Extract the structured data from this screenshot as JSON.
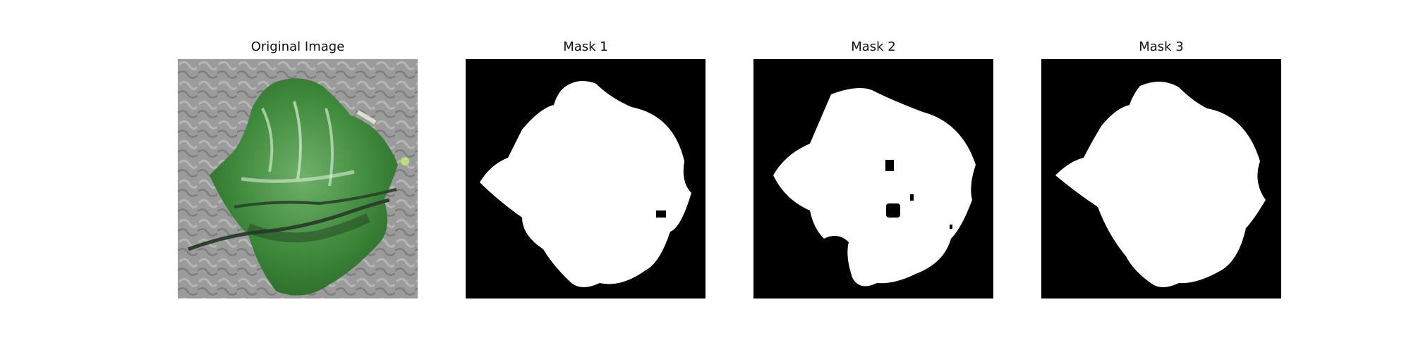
{
  "figure": {
    "panels": [
      {
        "title": "Original Image",
        "kind": "photo",
        "description_icon": "leaf-photo"
      },
      {
        "title": "Mask 1",
        "kind": "mask"
      },
      {
        "title": "Mask 2",
        "kind": "mask"
      },
      {
        "title": "Mask 3",
        "kind": "mask"
      }
    ]
  },
  "colors": {
    "mask_background": "#000000",
    "mask_foreground": "#ffffff",
    "leaf_green": "#3e8f3e",
    "photo_background": "#9a9a9a"
  }
}
